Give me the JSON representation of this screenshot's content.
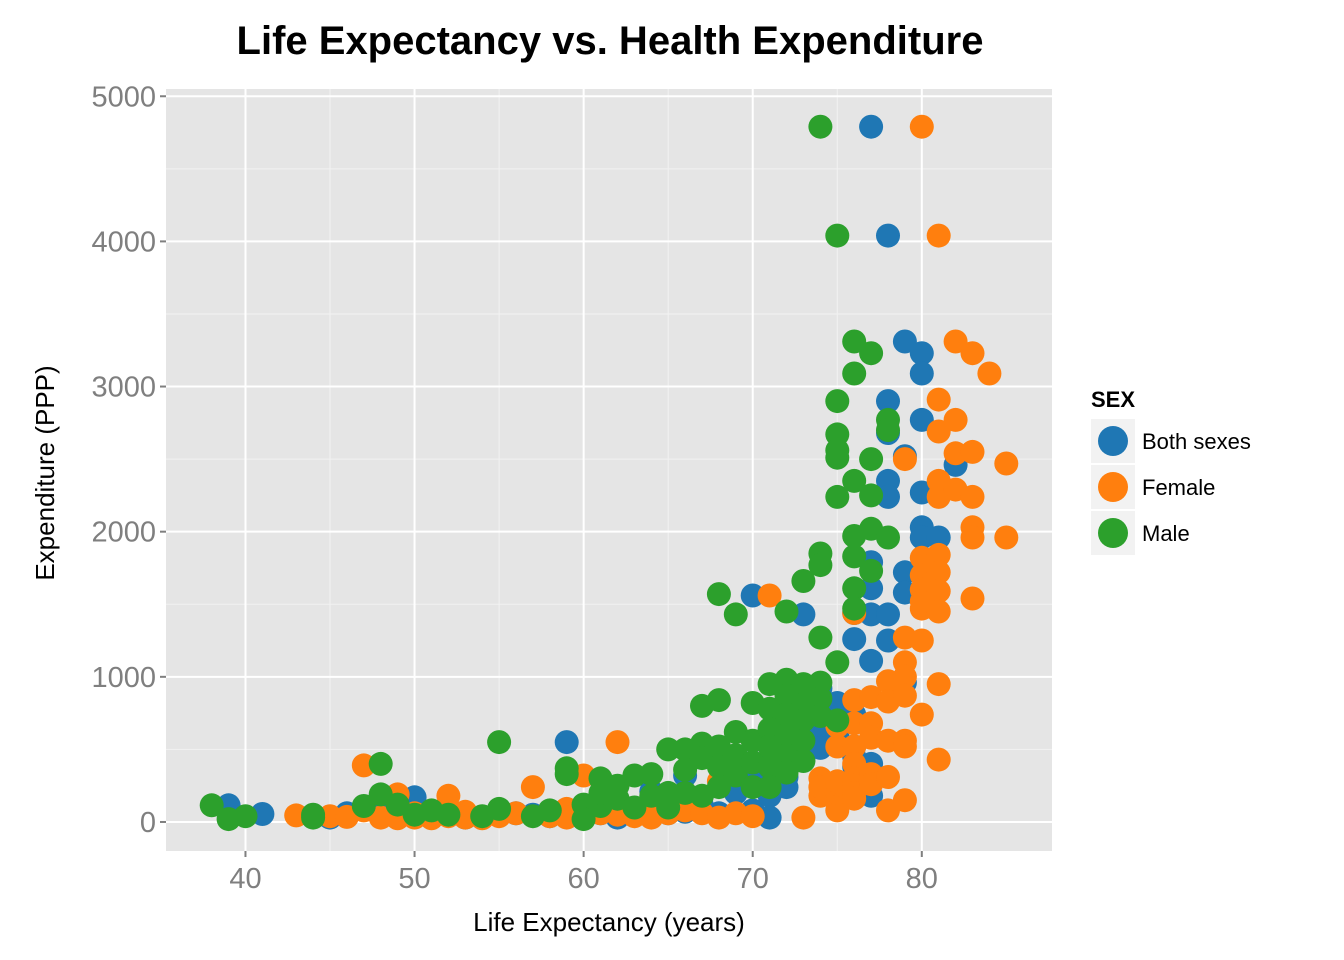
{
  "chart_data": {
    "type": "scatter",
    "title": "Life Expectancy vs. Health Expenditure",
    "xlabel": "Life Expectancy (years)",
    "ylabel": "Expenditure (PPP)",
    "xlim": [
      35.3,
      87.7
    ],
    "ylim": [
      -200,
      5050
    ],
    "x_ticks": [
      40,
      50,
      60,
      70,
      80
    ],
    "y_ticks": [
      0,
      1000,
      2000,
      3000,
      4000,
      5000
    ],
    "grid": true,
    "legend": {
      "title": "SEX",
      "placement": "right"
    },
    "series": [
      {
        "name": "Both sexes",
        "color": "#1f77b4",
        "points": [
          [
            39,
            115
          ],
          [
            41,
            55
          ],
          [
            45,
            30
          ],
          [
            46,
            60
          ],
          [
            48,
            40
          ],
          [
            48,
            110
          ],
          [
            49,
            45
          ],
          [
            50,
            170
          ],
          [
            51,
            30
          ],
          [
            52,
            85
          ],
          [
            53,
            30
          ],
          [
            55,
            50
          ],
          [
            56,
            60
          ],
          [
            57,
            50
          ],
          [
            58,
            40
          ],
          [
            59,
            550
          ],
          [
            59,
            60
          ],
          [
            60,
            80
          ],
          [
            61,
            60
          ],
          [
            62,
            30
          ],
          [
            62,
            120
          ],
          [
            63,
            60
          ],
          [
            64,
            150
          ],
          [
            64,
            210
          ],
          [
            65,
            60
          ],
          [
            66,
            320
          ],
          [
            66,
            70
          ],
          [
            67,
            110
          ],
          [
            68,
            60
          ],
          [
            69,
            200
          ],
          [
            69,
            320
          ],
          [
            70,
            80
          ],
          [
            70,
            1560
          ],
          [
            70,
            410
          ],
          [
            70,
            300
          ],
          [
            71,
            430
          ],
          [
            71,
            380
          ],
          [
            71,
            320
          ],
          [
            71,
            260
          ],
          [
            71,
            180
          ],
          [
            71,
            30
          ],
          [
            72,
            580
          ],
          [
            72,
            380
          ],
          [
            72,
            310
          ],
          [
            72,
            240
          ],
          [
            73,
            1430
          ],
          [
            73,
            880
          ],
          [
            73,
            760
          ],
          [
            73,
            700
          ],
          [
            73,
            640
          ],
          [
            73,
            580
          ],
          [
            73,
            510
          ],
          [
            73,
            430
          ],
          [
            74,
            920
          ],
          [
            74,
            800
          ],
          [
            74,
            720
          ],
          [
            74,
            660
          ],
          [
            74,
            580
          ],
          [
            74,
            510
          ],
          [
            75,
            820
          ],
          [
            75,
            760
          ],
          [
            75,
            680
          ],
          [
            75,
            600
          ],
          [
            75,
            540
          ],
          [
            75,
            250
          ],
          [
            75,
            150
          ],
          [
            76,
            1260
          ],
          [
            76,
            1440
          ],
          [
            76,
            740
          ],
          [
            76,
            520
          ],
          [
            76,
            450
          ],
          [
            76,
            380
          ],
          [
            77,
            4790
          ],
          [
            77,
            1110
          ],
          [
            77,
            1430
          ],
          [
            77,
            1610
          ],
          [
            77,
            1790
          ],
          [
            77,
            180
          ],
          [
            77,
            400
          ],
          [
            78,
            4040
          ],
          [
            78,
            2900
          ],
          [
            78,
            2680
          ],
          [
            78,
            2350
          ],
          [
            78,
            2240
          ],
          [
            78,
            1430
          ],
          [
            78,
            1250
          ],
          [
            79,
            3310
          ],
          [
            79,
            2520
          ],
          [
            79,
            1720
          ],
          [
            79,
            1580
          ],
          [
            79,
            960
          ],
          [
            80,
            3230
          ],
          [
            80,
            3090
          ],
          [
            80,
            2770
          ],
          [
            80,
            2270
          ],
          [
            80,
            2030
          ],
          [
            80,
            1960
          ],
          [
            81,
            1960
          ],
          [
            82,
            2460
          ]
        ]
      },
      {
        "name": "Female",
        "color": "#ff7f0e",
        "points": [
          [
            43,
            45
          ],
          [
            45,
            40
          ],
          [
            46,
            35
          ],
          [
            47,
            390
          ],
          [
            47,
            80
          ],
          [
            48,
            30
          ],
          [
            49,
            190
          ],
          [
            49,
            25
          ],
          [
            50,
            60
          ],
          [
            50,
            30
          ],
          [
            51,
            25
          ],
          [
            52,
            180
          ],
          [
            52,
            40
          ],
          [
            53,
            70
          ],
          [
            53,
            30
          ],
          [
            54,
            25
          ],
          [
            55,
            40
          ],
          [
            56,
            60
          ],
          [
            57,
            240
          ],
          [
            58,
            40
          ],
          [
            59,
            90
          ],
          [
            59,
            30
          ],
          [
            60,
            320
          ],
          [
            60,
            30
          ],
          [
            61,
            60
          ],
          [
            62,
            550
          ],
          [
            62,
            50
          ],
          [
            63,
            40
          ],
          [
            64,
            30
          ],
          [
            65,
            60
          ],
          [
            66,
            80
          ],
          [
            67,
            60
          ],
          [
            68,
            280
          ],
          [
            68,
            30
          ],
          [
            69,
            60
          ],
          [
            70,
            40
          ],
          [
            71,
            1560
          ],
          [
            73,
            30
          ],
          [
            74,
            180
          ],
          [
            74,
            300
          ],
          [
            74,
            240
          ],
          [
            75,
            80
          ],
          [
            75,
            200
          ],
          [
            75,
            260
          ],
          [
            75,
            280
          ],
          [
            75,
            520
          ],
          [
            75,
            660
          ],
          [
            76,
            1440
          ],
          [
            76,
            840
          ],
          [
            76,
            680
          ],
          [
            76,
            520
          ],
          [
            76,
            400
          ],
          [
            76,
            300
          ],
          [
            76,
            250
          ],
          [
            76,
            200
          ],
          [
            76,
            160
          ],
          [
            77,
            860
          ],
          [
            77,
            680
          ],
          [
            77,
            580
          ],
          [
            77,
            330
          ],
          [
            77,
            260
          ],
          [
            78,
            970
          ],
          [
            78,
            830
          ],
          [
            78,
            560
          ],
          [
            78,
            310
          ],
          [
            78,
            80
          ],
          [
            79,
            2500
          ],
          [
            79,
            1270
          ],
          [
            79,
            1100
          ],
          [
            79,
            1000
          ],
          [
            79,
            870
          ],
          [
            79,
            560
          ],
          [
            79,
            520
          ],
          [
            79,
            150
          ],
          [
            80,
            4790
          ],
          [
            80,
            1470
          ],
          [
            80,
            1250
          ],
          [
            80,
            1820
          ],
          [
            80,
            1700
          ],
          [
            80,
            1600
          ],
          [
            80,
            1520
          ],
          [
            80,
            740
          ],
          [
            81,
            4040
          ],
          [
            81,
            2910
          ],
          [
            81,
            2690
          ],
          [
            81,
            2350
          ],
          [
            81,
            2240
          ],
          [
            81,
            1840
          ],
          [
            81,
            1720
          ],
          [
            81,
            1590
          ],
          [
            81,
            1450
          ],
          [
            81,
            950
          ],
          [
            81,
            430
          ],
          [
            82,
            3310
          ],
          [
            82,
            2770
          ],
          [
            82,
            2540
          ],
          [
            82,
            2290
          ],
          [
            83,
            3230
          ],
          [
            83,
            2550
          ],
          [
            83,
            2240
          ],
          [
            83,
            2030
          ],
          [
            83,
            1960
          ],
          [
            83,
            1540
          ],
          [
            84,
            3090
          ],
          [
            85,
            2470
          ],
          [
            85,
            1960
          ]
        ]
      },
      {
        "name": "Male",
        "color": "#2ca02c",
        "points": [
          [
            38,
            115
          ],
          [
            39,
            20
          ],
          [
            40,
            40
          ],
          [
            44,
            50
          ],
          [
            44,
            30
          ],
          [
            47,
            110
          ],
          [
            48,
            400
          ],
          [
            48,
            190
          ],
          [
            49,
            120
          ],
          [
            50,
            50
          ],
          [
            51,
            80
          ],
          [
            52,
            50
          ],
          [
            54,
            40
          ],
          [
            55,
            550
          ],
          [
            55,
            90
          ],
          [
            57,
            40
          ],
          [
            58,
            80
          ],
          [
            59,
            330
          ],
          [
            59,
            370
          ],
          [
            60,
            120
          ],
          [
            60,
            20
          ],
          [
            61,
            300
          ],
          [
            61,
            110
          ],
          [
            61,
            200
          ],
          [
            62,
            160
          ],
          [
            62,
            250
          ],
          [
            63,
            320
          ],
          [
            63,
            100
          ],
          [
            64,
            330
          ],
          [
            64,
            180
          ],
          [
            65,
            500
          ],
          [
            65,
            200
          ],
          [
            65,
            100
          ],
          [
            66,
            500
          ],
          [
            66,
            360
          ],
          [
            66,
            200
          ],
          [
            67,
            800
          ],
          [
            67,
            540
          ],
          [
            67,
            440
          ],
          [
            67,
            180
          ],
          [
            68,
            1570
          ],
          [
            68,
            840
          ],
          [
            68,
            520
          ],
          [
            68,
            380
          ],
          [
            68,
            240
          ],
          [
            69,
            1430
          ],
          [
            69,
            620
          ],
          [
            69,
            460
          ],
          [
            69,
            320
          ],
          [
            70,
            820
          ],
          [
            70,
            560
          ],
          [
            70,
            410
          ],
          [
            70,
            240
          ],
          [
            71,
            950
          ],
          [
            71,
            780
          ],
          [
            71,
            640
          ],
          [
            71,
            520
          ],
          [
            71,
            380
          ],
          [
            71,
            240
          ],
          [
            72,
            1450
          ],
          [
            72,
            980
          ],
          [
            72,
            870
          ],
          [
            72,
            740
          ],
          [
            72,
            600
          ],
          [
            72,
            460
          ],
          [
            72,
            340
          ],
          [
            73,
            1660
          ],
          [
            73,
            950
          ],
          [
            73,
            810
          ],
          [
            73,
            700
          ],
          [
            73,
            560
          ],
          [
            73,
            420
          ],
          [
            74,
            4790
          ],
          [
            74,
            1850
          ],
          [
            74,
            1770
          ],
          [
            74,
            1270
          ],
          [
            74,
            960
          ],
          [
            74,
            850
          ],
          [
            74,
            730
          ],
          [
            75,
            4040
          ],
          [
            75,
            2900
          ],
          [
            75,
            2670
          ],
          [
            75,
            2560
          ],
          [
            75,
            2510
          ],
          [
            75,
            2240
          ],
          [
            75,
            1100
          ],
          [
            75,
            700
          ],
          [
            76,
            3310
          ],
          [
            76,
            3090
          ],
          [
            76,
            2350
          ],
          [
            76,
            1970
          ],
          [
            76,
            1830
          ],
          [
            76,
            1610
          ],
          [
            76,
            1470
          ],
          [
            77,
            3230
          ],
          [
            77,
            2500
          ],
          [
            77,
            2250
          ],
          [
            77,
            2020
          ],
          [
            77,
            1730
          ],
          [
            78,
            2770
          ],
          [
            78,
            2700
          ],
          [
            78,
            1960
          ]
        ]
      }
    ]
  }
}
